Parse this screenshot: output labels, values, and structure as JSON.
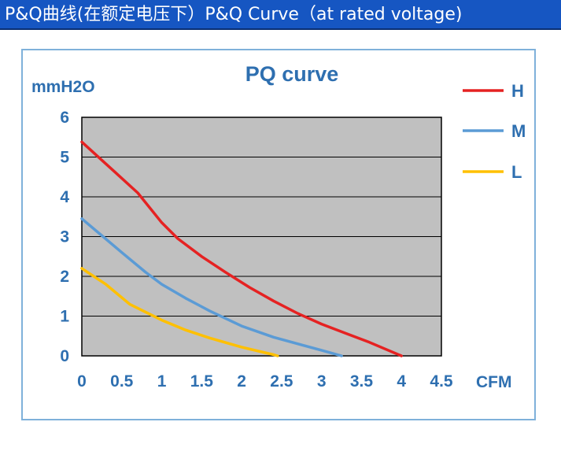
{
  "header": {
    "title": "P&Q曲线(在额定电压下）P&Q Curve（at rated voltage)"
  },
  "colors": {
    "banner": "#1656c2",
    "plot_background": "#c0c0c0",
    "text": "#2e6fb0",
    "frame": "#7fb1da"
  },
  "chart_data": {
    "type": "line",
    "title": "PQ curve",
    "xlabel": "CFM",
    "ylabel": "mmH2O",
    "xlim": [
      0,
      4.5
    ],
    "ylim": [
      0,
      6
    ],
    "xticks": [
      "0",
      "0.5",
      "1",
      "1.5",
      "2",
      "2.5",
      "3",
      "3.5",
      "4",
      "4.5"
    ],
    "yticks": [
      "0",
      "1",
      "2",
      "3",
      "4",
      "5",
      "6"
    ],
    "grid": "horizontal",
    "legend_position": "right",
    "series": [
      {
        "name": "H",
        "color": "#e52222",
        "points": [
          [
            0,
            5.38
          ],
          [
            0.4,
            4.65
          ],
          [
            0.7,
            4.1
          ],
          [
            1.0,
            3.35
          ],
          [
            1.2,
            2.95
          ],
          [
            1.5,
            2.5
          ],
          [
            1.8,
            2.1
          ],
          [
            2.1,
            1.72
          ],
          [
            2.4,
            1.38
          ],
          [
            2.7,
            1.07
          ],
          [
            3.0,
            0.8
          ],
          [
            3.3,
            0.57
          ],
          [
            3.6,
            0.34
          ],
          [
            4.0,
            0.0
          ]
        ]
      },
      {
        "name": "M",
        "color": "#5b9bd5",
        "points": [
          [
            0,
            3.45
          ],
          [
            0.5,
            2.6
          ],
          [
            0.8,
            2.1
          ],
          [
            1.0,
            1.8
          ],
          [
            1.3,
            1.45
          ],
          [
            1.6,
            1.13
          ],
          [
            2.0,
            0.75
          ],
          [
            2.4,
            0.47
          ],
          [
            2.8,
            0.25
          ],
          [
            3.0,
            0.14
          ],
          [
            3.25,
            0.0
          ]
        ]
      },
      {
        "name": "L",
        "color": "#ffc000",
        "points": [
          [
            0,
            2.2
          ],
          [
            0.3,
            1.8
          ],
          [
            0.6,
            1.3
          ],
          [
            1.0,
            0.9
          ],
          [
            1.3,
            0.65
          ],
          [
            1.6,
            0.45
          ],
          [
            2.0,
            0.22
          ],
          [
            2.4,
            0.03
          ],
          [
            2.45,
            0.0
          ]
        ]
      }
    ]
  }
}
